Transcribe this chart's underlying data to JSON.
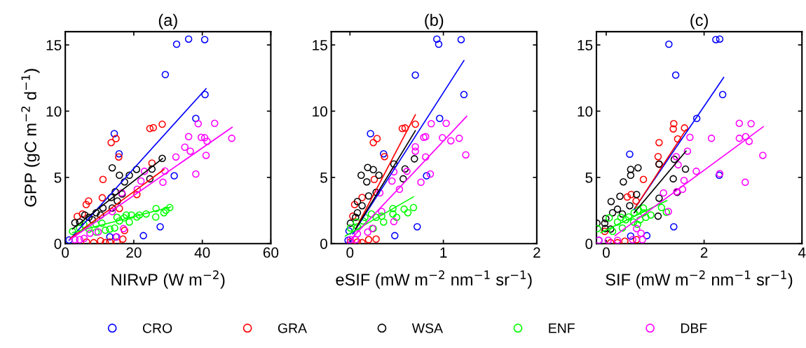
{
  "chart_data": [
    {
      "type": "scatter",
      "title": "(a)",
      "xlabel": "NIRvP (W m$^{−2}$)",
      "ylabel": "GPP (gC m$^{−2}$ d$^{−1}$)",
      "xlim": [
        0,
        60
      ],
      "xticks": [
        0,
        20,
        40,
        60
      ],
      "ylim": [
        0,
        16
      ],
      "yticks": [
        0,
        5,
        10,
        15
      ],
      "grid": false,
      "marker": "circle",
      "legend": "bottom",
      "series": [
        {
          "name": "CRO",
          "color": "#0000ff",
          "x": [
            32.5,
            36.0,
            40.7,
            29.2,
            40.8,
            38.1,
            14.3,
            15.7,
            31.8,
            27.7,
            22.8,
            13.0,
            14.8,
            1.1
          ],
          "values": [
            15.05,
            15.44,
            15.4,
            12.76,
            11.25,
            9.45,
            8.3,
            6.78,
            5.12,
            1.27,
            0.6,
            0.51,
            0.5,
            0.27
          ]
        },
        {
          "name": "GRA",
          "color": "#ff0000",
          "x": [
            28.3,
            24.7,
            25.7,
            25.3,
            13.4,
            14.8,
            15.6,
            11.0,
            10.8,
            6.1,
            6.8,
            3.5,
            5.0,
            15.8,
            17.3,
            16.8,
            20.9,
            6.2,
            8.3,
            11.7,
            13.0,
            15.1,
            10.3
          ],
          "values": [
            9.01,
            8.69,
            8.75,
            6.08,
            7.63,
            7.93,
            6.54,
            4.84,
            3.46,
            2.95,
            3.22,
            2.05,
            2.24,
            2.65,
            0.99,
            0.34,
            3.71,
            0.12,
            0.07,
            0.07,
            0.12,
            0.12,
            0.21
          ]
        },
        {
          "name": "WSA",
          "color": "#000000",
          "x": [
            28.3,
            25.3,
            24.7,
            20.8,
            18.7,
            15.8,
            13.7,
            17.3,
            14.6,
            16.6,
            13.4,
            15.2,
            11.0,
            13.7,
            9.0,
            5.7,
            7.9,
            2.8,
            4.2,
            6.9,
            10.3
          ],
          "values": [
            6.43,
            5.62,
            4.89,
            5.6,
            5.16,
            5.16,
            5.72,
            4.66,
            3.92,
            3.75,
            3.48,
            3.22,
            2.69,
            2.69,
            2.33,
            2.16,
            1.8,
            1.57,
            1.63,
            1.98,
            2.16
          ]
        },
        {
          "name": "ENF",
          "color": "#00ff00",
          "x": [
            30.5,
            29.4,
            28.8,
            26.5,
            26.4,
            23.6,
            21.6,
            20.9,
            19.3,
            17.8,
            18.7,
            15.1,
            15.8,
            14.4,
            13.0,
            11.7,
            10.7,
            9.0,
            6.9,
            4.2,
            2.1,
            5.4,
            9.0,
            17.2
          ],
          "values": [
            2.72,
            2.51,
            2.33,
            2.65,
            2.01,
            2.24,
            2.16,
            2.01,
            2.16,
            2.16,
            1.63,
            1.98,
            1.71,
            1.18,
            1.1,
            1.01,
            1.54,
            1.45,
            1.1,
            1.18,
            0.92,
            1.45,
            0.87,
            1.94
          ]
        },
        {
          "name": "DBF",
          "color": "#ff00ff",
          "x": [
            48.6,
            43.6,
            38.8,
            36.0,
            39.7,
            40.7,
            41.4,
            34.9,
            36.5,
            32.3,
            41.1,
            38.1,
            29.1,
            28.5,
            23.1,
            22.1,
            21.0,
            16.5,
            13.7,
            17.0,
            15.0,
            9.6,
            7.2,
            2.8,
            4.2,
            5.5
          ],
          "values": [
            7.95,
            9.08,
            9.05,
            8.07,
            8.02,
            7.99,
            7.72,
            7.28,
            6.98,
            6.54,
            6.66,
            5.25,
            5.48,
            4.63,
            5.46,
            4.72,
            4.1,
            3.82,
            2.42,
            1.13,
            0.51,
            0.88,
            0.78,
            0.3,
            0.3,
            0.39
          ]
        },
        {
          "type": "line",
          "marker": "none",
          "color": "#0000ff",
          "x": [
            1.1,
            41.1
          ],
          "values": [
            0.26,
            11.7
          ]
        },
        {
          "type": "line",
          "marker": "none",
          "color": "#ff0000",
          "x": [
            1.5,
            28.8
          ],
          "values": [
            0.4,
            5.6
          ]
        },
        {
          "type": "line",
          "marker": "none",
          "color": "#000000",
          "x": [
            2.1,
            28.4
          ],
          "values": [
            1.1,
            6.43
          ]
        },
        {
          "type": "line",
          "marker": "none",
          "color": "#00ff00",
          "x": [
            2.1,
            30.8
          ],
          "values": [
            0.83,
            2.77
          ]
        },
        {
          "type": "line",
          "marker": "none",
          "color": "#ff00ff",
          "x": [
            1.4,
            48.7
          ],
          "values": [
            0.3,
            8.78
          ]
        }
      ]
    },
    {
      "type": "scatter",
      "title": "(b)",
      "xlabel": "eSIF (mW m$^{−2}$ nm$^{−1}$ sr$^{−1}$)",
      "xlim": [
        -0.2,
        2
      ],
      "xticks": [
        0,
        1,
        2
      ],
      "ylim": [
        0,
        16
      ],
      "yticks": [
        0,
        5,
        10,
        15
      ],
      "grid": false,
      "marker": "circle",
      "series": [
        {
          "color": "#0000ff",
          "x": [
            0.93,
            0.95,
            1.19,
            0.7,
            1.22,
            0.96,
            0.22,
            0.36,
            0.82,
            0.72,
            0.48,
            -0.02,
            -0.01
          ],
          "values": [
            15.44,
            15.05,
            15.4,
            12.72,
            11.25,
            9.45,
            8.3,
            6.78,
            5.12,
            1.27,
            0.6,
            0.25,
            0.95
          ]
        },
        {
          "color": "#ff0000",
          "x": [
            0.7,
            0.56,
            0.59,
            0.29,
            0.25,
            0.37,
            0.26,
            0.13,
            0.05,
            0.03,
            0.28,
            0.2,
            0.08,
            0.005,
            0.13
          ],
          "values": [
            9.01,
            8.69,
            8.73,
            7.93,
            7.63,
            6.57,
            4.84,
            3.48,
            2.95,
            2.07,
            0.34,
            0.3,
            0.12,
            0.12,
            0.07
          ]
        },
        {
          "color": "#000000",
          "x": [
            0.47,
            0.69,
            0.59,
            0.57,
            0.12,
            0.19,
            0.25,
            0.31,
            0.18,
            0.2,
            0.28,
            0.08,
            0.13,
            0.08,
            0.005,
            0.06
          ],
          "values": [
            6.01,
            6.4,
            5.64,
            4.89,
            5.16,
            5.74,
            5.58,
            5.16,
            4.66,
            3.6,
            3.87,
            3.18,
            2.86,
            2.33,
            1.54,
            1.98
          ]
        },
        {
          "color": "#00ff00",
          "x": [
            0.68,
            0.62,
            0.58,
            0.46,
            0.46,
            0.5,
            0.36,
            0.34,
            0.23,
            0.16,
            0.07,
            0.14,
            0.005,
            0.08,
            0.28,
            0.25
          ],
          "values": [
            2.72,
            2.33,
            2.6,
            2.65,
            2.24,
            1.98,
            1.63,
            2.07,
            2.24,
            1.98,
            1.63,
            1.71,
            1.18,
            1.27,
            1.98,
            1.13
          ]
        },
        {
          "color": "#ff00ff",
          "x": [
            1.24,
            1.17,
            1.08,
            0.99,
            0.87,
            1.03,
            0.81,
            0.79,
            0.7,
            0.7,
            0.81,
            0.86,
            0.76,
            0.61,
            0.47,
            0.45,
            0.53,
            0.32,
            0.34,
            0.47,
            0.24,
            0.19,
            0.08,
            0.005,
            0.06
          ],
          "values": [
            6.7,
            7.95,
            7.76,
            7.99,
            9.05,
            9.08,
            8.07,
            8.02,
            7.31,
            6.98,
            6.54,
            5.25,
            4.63,
            5.46,
            5.42,
            4.72,
            4.1,
            3.83,
            2.42,
            1.66,
            1.15,
            0.87,
            0.74,
            0.3,
            0.3
          ]
        },
        {
          "type": "line",
          "marker": "none",
          "color": "#0000ff",
          "x": [
            0.03,
            1.22
          ],
          "values": [
            0.74,
            13.82
          ]
        },
        {
          "type": "line",
          "marker": "none",
          "color": "#ff0000",
          "x": [
            0.06,
            0.7
          ],
          "values": [
            1.1,
            9.72
          ]
        },
        {
          "type": "line",
          "marker": "none",
          "color": "#000000",
          "x": [
            0.06,
            0.7
          ],
          "values": [
            1.1,
            8.52
          ]
        },
        {
          "type": "line",
          "marker": "none",
          "color": "#00ff00",
          "x": [
            -0.05,
            0.68
          ],
          "values": [
            0.57,
            3.53
          ]
        },
        {
          "type": "line",
          "marker": "none",
          "color": "#ff00ff",
          "x": [
            0.005,
            1.25
          ],
          "values": [
            0.3,
            9.61
          ]
        }
      ]
    },
    {
      "type": "scatter",
      "title": "(c)",
      "xlabel": "SIF (mW m$^{−2}$ nm$^{−1}$ sr$^{−1}$)",
      "xlim": [
        -0.2,
        4
      ],
      "xticks": [
        0,
        2,
        4
      ],
      "ylim": [
        0,
        16
      ],
      "yticks": [
        0,
        5,
        10,
        15
      ],
      "grid": false,
      "marker": "circle",
      "series": [
        {
          "color": "#0000ff",
          "x": [
            1.28,
            2.24,
            2.32,
            1.42,
            2.38,
            1.85,
            0.48,
            2.31,
            1.38,
            0.83,
            0.5,
            -0.15
          ],
          "values": [
            15.05,
            15.4,
            15.44,
            12.72,
            11.25,
            9.45,
            6.75,
            5.16,
            1.27,
            0.6,
            0.57,
            0.25
          ]
        },
        {
          "color": "#ff0000",
          "x": [
            1.6,
            1.38,
            1.37,
            1.46,
            1.08,
            1.06,
            1.08,
            0.76,
            0.43,
            0.51,
            0.61,
            -0.03,
            0.09,
            0.23,
            0.38,
            0.62
          ],
          "values": [
            8.73,
            9.05,
            8.66,
            7.9,
            7.63,
            6.57,
            5.99,
            4.84,
            3.52,
            3.71,
            3.22,
            0.92,
            0.07,
            0.07,
            0.18,
            0.3
          ]
        },
        {
          "color": "#000000",
          "x": [
            -0.19,
            -0.02,
            -0.03,
            -0.01,
            0.1,
            0.28,
            0.35,
            0.5,
            0.5,
            0.65,
            0.62,
            0.48,
            0.23,
            0.33,
            0.13,
            1.08,
            1.39,
            1.37,
            1.62,
            1.45,
            1.08,
            1.06,
            0.09
          ],
          "values": [
            1.54,
            1.13,
            1.54,
            1.89,
            3.18,
            3.57,
            4.66,
            5.6,
            5.16,
            5.72,
            3.71,
            2.86,
            2.6,
            2.24,
            2.33,
            6.01,
            6.36,
            4.89,
            5.62,
            3.87,
            3.43,
            2.07,
            1.1
          ]
        },
        {
          "color": "#00ff00",
          "x": [
            -0.18,
            0.06,
            0.23,
            0.3,
            0.4,
            0.46,
            0.57,
            0.66,
            0.76,
            0.76,
            0.81,
            0.91,
            1.13,
            1.23,
            0.56,
            0.33,
            0.13,
            0.69,
            0.64
          ],
          "values": [
            1.13,
            1.94,
            1.63,
            1.98,
            1.8,
            2.01,
            2.33,
            2.54,
            2.69,
            2.33,
            1.98,
            2.16,
            2.72,
            2.37,
            1.63,
            1.18,
            0.92,
            1.8,
            1.45
          ]
        },
        {
          "color": "#ff00ff",
          "x": [
            2.72,
            2.96,
            2.72,
            2.85,
            2.92,
            3.2,
            2.15,
            1.71,
            1.66,
            1.43,
            1.47,
            1.84,
            2.32,
            2.84,
            1.59,
            1.56,
            1.44,
            1.17,
            1.27,
            0.62,
            0.71,
            0.74,
            0.54,
            -0.15,
            0.04,
            0.23
          ],
          "values": [
            9.08,
            9.05,
            7.95,
            8.07,
            7.72,
            6.66,
            7.95,
            8.02,
            6.98,
            6.57,
            5.95,
            5.46,
            5.28,
            4.63,
            4.77,
            4.1,
            3.92,
            3.83,
            2.42,
            1.13,
            0.78,
            0.3,
            0.3,
            0.25,
            0.25,
            0.25
          ]
        },
        {
          "type": "line",
          "marker": "none",
          "color": "#0000ff",
          "x": [
            0.57,
            2.4
          ],
          "values": [
            2.6,
            12.54
          ]
        },
        {
          "type": "line",
          "marker": "none",
          "color": "#ff0000",
          "x": [
            0.59,
            1.63
          ],
          "values": [
            2.69,
            8.6
          ]
        },
        {
          "type": "line",
          "marker": "none",
          "color": "#000000",
          "x": [
            0.57,
            1.63
          ],
          "values": [
            2.33,
            6.98
          ]
        },
        {
          "type": "line",
          "marker": "none",
          "color": "#00ff00",
          "x": [
            -0.11,
            1.24
          ],
          "values": [
            0.83,
            3.25
          ]
        },
        {
          "type": "line",
          "marker": "none",
          "color": "#ff00ff",
          "x": [
            0.18,
            3.21
          ],
          "values": [
            0.6,
            8.82
          ]
        }
      ]
    }
  ]
}
